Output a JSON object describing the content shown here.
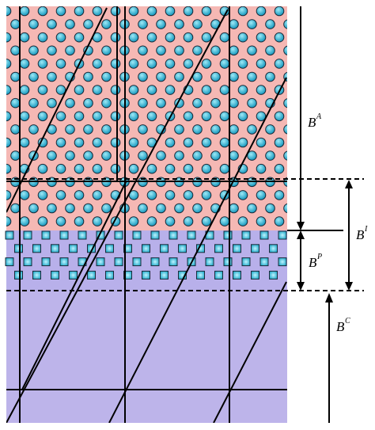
{
  "colors": {
    "layer_a": "#f5b8b4",
    "layer_p": "#b8b0ea",
    "substrate": "#bdb4ea",
    "atom_fill": "#1aa8c8",
    "atom_highlight": "#8fe4f5",
    "line": "#000000"
  },
  "regions": [
    {
      "name": "layer-a",
      "pattern": "circles"
    },
    {
      "name": "layer-p",
      "pattern": "squares"
    },
    {
      "name": "substrate",
      "pattern": "none"
    }
  ],
  "labels": {
    "b_a": {
      "base": "B",
      "sup": "A"
    },
    "b_i": {
      "base": "B",
      "sup": "I"
    },
    "b_p": {
      "base": "B",
      "sup": "P"
    },
    "b_c": {
      "base": "B",
      "sup": "C"
    }
  }
}
